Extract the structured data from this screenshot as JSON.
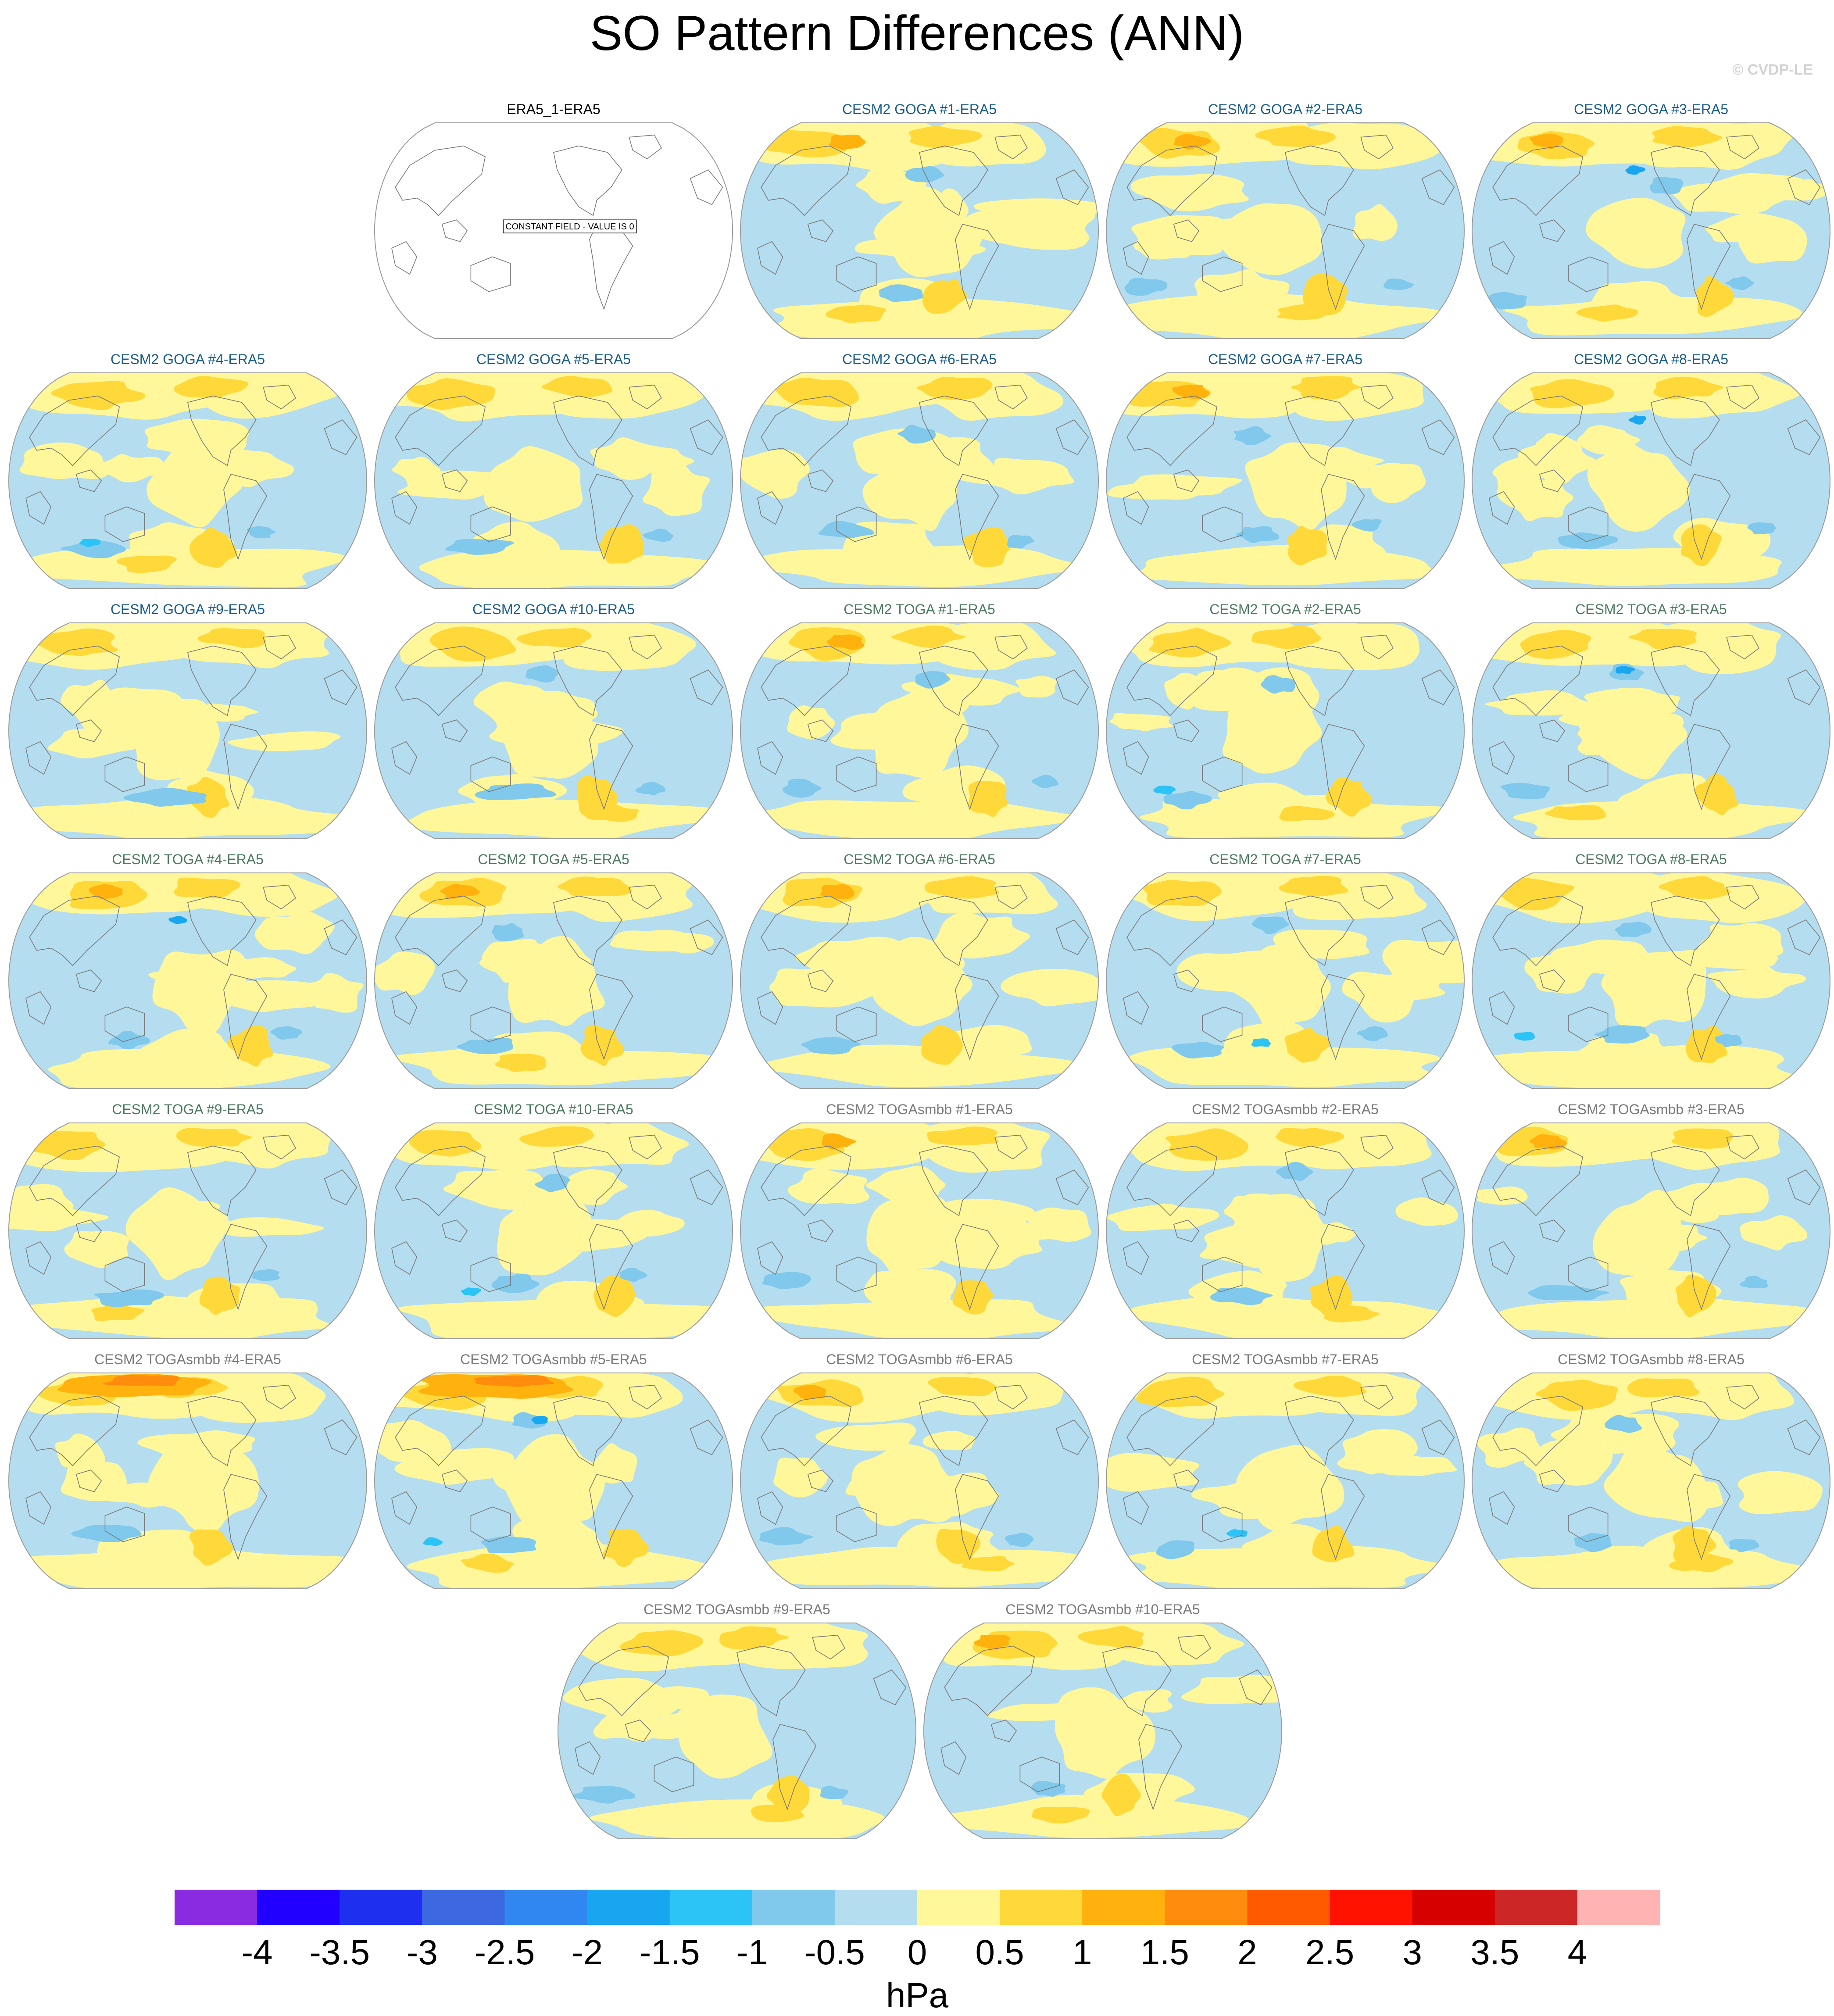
{
  "title": "SO Pattern Differences (ANN)",
  "watermark": "© CVDP-LE",
  "chart_data": {
    "type": "heatmap",
    "title": "SO Pattern Differences (ANN)",
    "projection": "Robinson, Pacific-centered",
    "units": "hPa",
    "colorbar": {
      "ticks": [
        "-4",
        "-3.5",
        "-3",
        "-2.5",
        "-2",
        "-1.5",
        "-1",
        "-0.5",
        "0",
        "0.5",
        "1",
        "1.5",
        "2",
        "2.5",
        "3",
        "3.5",
        "4"
      ],
      "bins": [
        "<-4",
        "-4 to -3.5",
        "-3.5 to -3",
        "-3 to -2.5",
        "-2.5 to -2",
        "-2 to -1.5",
        "-1.5 to -1",
        "-1 to -0.5",
        "-0.5 to 0",
        "0 to 0.5",
        "0.5 to 1",
        "1 to 1.5",
        "1.5 to 2",
        "2 to 2.5",
        "2.5 to 3",
        "3 to 3.5",
        "3.5 to 4",
        ">4"
      ],
      "colors": [
        "#8a2be2",
        "#2200ff",
        "#1e2ff0",
        "#3c68e0",
        "#2f87ef",
        "#17a6ef",
        "#2cc3f6",
        "#80c9ec",
        "#b5ddf0",
        "#fff799",
        "#ffd93a",
        "#ffb20e",
        "#ff8c0c",
        "#ff5a00",
        "#ff1200",
        "#d60000",
        "#cc2626",
        "#ffb3b3"
      ]
    },
    "panels": [
      {
        "name": "ERA5_1-ERA5",
        "group": "obs",
        "note": "CONSTANT FIELD - VALUE IS 0"
      },
      {
        "name": "CESM2 GOGA #1-ERA5",
        "group": "goga"
      },
      {
        "name": "CESM2 GOGA #2-ERA5",
        "group": "goga"
      },
      {
        "name": "CESM2 GOGA #3-ERA5",
        "group": "goga"
      },
      {
        "name": "CESM2 GOGA #4-ERA5",
        "group": "goga"
      },
      {
        "name": "CESM2 GOGA #5-ERA5",
        "group": "goga"
      },
      {
        "name": "CESM2 GOGA #6-ERA5",
        "group": "goga"
      },
      {
        "name": "CESM2 GOGA #7-ERA5",
        "group": "goga"
      },
      {
        "name": "CESM2 GOGA #8-ERA5",
        "group": "goga"
      },
      {
        "name": "CESM2 GOGA #9-ERA5",
        "group": "goga"
      },
      {
        "name": "CESM2 GOGA #10-ERA5",
        "group": "goga"
      },
      {
        "name": "CESM2 TOGA #1-ERA5",
        "group": "toga"
      },
      {
        "name": "CESM2 TOGA #2-ERA5",
        "group": "toga"
      },
      {
        "name": "CESM2 TOGA #3-ERA5",
        "group": "toga"
      },
      {
        "name": "CESM2 TOGA #4-ERA5",
        "group": "toga"
      },
      {
        "name": "CESM2 TOGA #5-ERA5",
        "group": "toga"
      },
      {
        "name": "CESM2 TOGA #6-ERA5",
        "group": "toga"
      },
      {
        "name": "CESM2 TOGA #7-ERA5",
        "group": "toga"
      },
      {
        "name": "CESM2 TOGA #8-ERA5",
        "group": "toga"
      },
      {
        "name": "CESM2 TOGA #9-ERA5",
        "group": "toga"
      },
      {
        "name": "CESM2 TOGA #10-ERA5",
        "group": "toga"
      },
      {
        "name": "CESM2 TOGAsmbb #1-ERA5",
        "group": "togasmbb"
      },
      {
        "name": "CESM2 TOGAsmbb #2-ERA5",
        "group": "togasmbb"
      },
      {
        "name": "CESM2 TOGAsmbb #3-ERA5",
        "group": "togasmbb"
      },
      {
        "name": "CESM2 TOGAsmbb #4-ERA5",
        "group": "togasmbb"
      },
      {
        "name": "CESM2 TOGAsmbb #5-ERA5",
        "group": "togasmbb"
      },
      {
        "name": "CESM2 TOGAsmbb #6-ERA5",
        "group": "togasmbb"
      },
      {
        "name": "CESM2 TOGAsmbb #7-ERA5",
        "group": "togasmbb"
      },
      {
        "name": "CESM2 TOGAsmbb #8-ERA5",
        "group": "togasmbb"
      },
      {
        "name": "CESM2 TOGAsmbb #9-ERA5",
        "group": "togasmbb"
      },
      {
        "name": "CESM2 TOGAsmbb #10-ERA5",
        "group": "togasmbb"
      }
    ],
    "title_colors": {
      "obs": "#000000",
      "goga": "#1a5d8c",
      "toga": "#4d7a60",
      "togasmbb": "#7a7a7a"
    }
  }
}
